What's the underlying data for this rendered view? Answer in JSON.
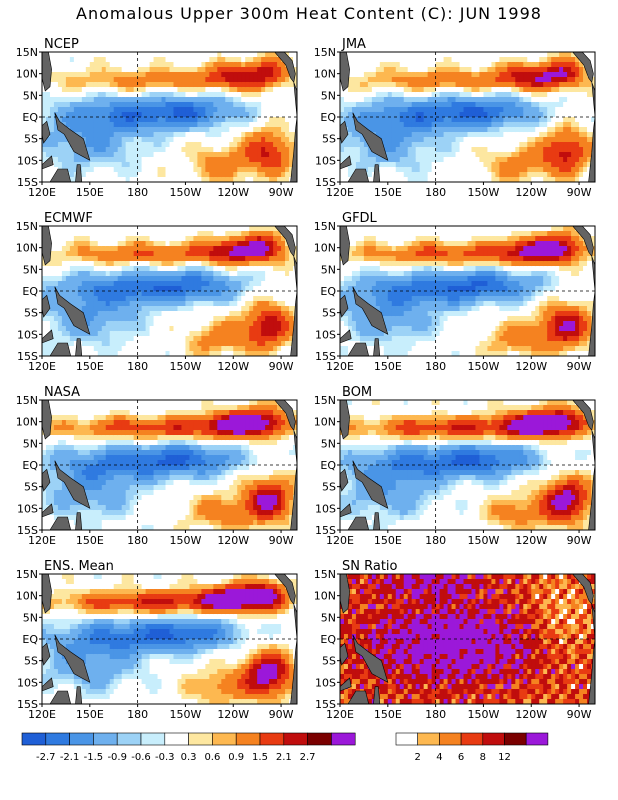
{
  "title": "Anomalous Upper 300m Heat Content (C): JUN 1998",
  "colors": {
    "anomaly_scale": [
      "#1f5fd6",
      "#2f7ae0",
      "#4a95e6",
      "#6eb0ee",
      "#9cd2f6",
      "#c8eefc",
      "#ffffff",
      "#fde7a0",
      "#fdb850",
      "#f58220",
      "#e83b12",
      "#c00d0d",
      "#7a0000",
      "#9b18d9"
    ],
    "sn_scale": [
      "#ffffff",
      "#fdb850",
      "#f58220",
      "#e83b12",
      "#c00d0d",
      "#7a0000",
      "#9b18d9"
    ],
    "land": "#636363"
  },
  "chart_data": [
    {
      "type": "heatmap",
      "title": "NCEP",
      "x_ticks": [
        "120E",
        "150E",
        "180",
        "150W",
        "120W",
        "90W"
      ],
      "y_ticks": [
        "15N",
        "10N",
        "5N",
        "EQ",
        "5S",
        "10S",
        "15S"
      ],
      "colorbar": "anomaly"
    },
    {
      "type": "heatmap",
      "title": "JMA",
      "x_ticks": [
        "120E",
        "150E",
        "180",
        "150W",
        "120W",
        "90W"
      ],
      "y_ticks": [
        "15N",
        "10N",
        "5N",
        "EQ",
        "5S",
        "10S",
        "15S"
      ],
      "colorbar": "anomaly"
    },
    {
      "type": "heatmap",
      "title": "ECMWF",
      "x_ticks": [
        "120E",
        "150E",
        "180",
        "150W",
        "120W",
        "90W"
      ],
      "y_ticks": [
        "15N",
        "10N",
        "5N",
        "EQ",
        "5S",
        "10S",
        "15S"
      ],
      "colorbar": "anomaly"
    },
    {
      "type": "heatmap",
      "title": "GFDL",
      "x_ticks": [
        "120E",
        "150E",
        "180",
        "150W",
        "120W",
        "90W"
      ],
      "y_ticks": [
        "15N",
        "10N",
        "5N",
        "EQ",
        "5S",
        "10S",
        "15S"
      ],
      "colorbar": "anomaly"
    },
    {
      "type": "heatmap",
      "title": "NASA",
      "x_ticks": [
        "120E",
        "150E",
        "180",
        "150W",
        "120W",
        "90W"
      ],
      "y_ticks": [
        "15N",
        "10N",
        "5N",
        "EQ",
        "5S",
        "10S",
        "15S"
      ],
      "colorbar": "anomaly"
    },
    {
      "type": "heatmap",
      "title": "BOM",
      "x_ticks": [
        "120E",
        "150E",
        "180",
        "150W",
        "120W",
        "90W"
      ],
      "y_ticks": [
        "15N",
        "10N",
        "5N",
        "EQ",
        "5S",
        "10S",
        "15S"
      ],
      "colorbar": "anomaly"
    },
    {
      "type": "heatmap",
      "title": "ENS. Mean",
      "x_ticks": [
        "120E",
        "150E",
        "180",
        "150W",
        "120W",
        "90W"
      ],
      "y_ticks": [
        "15N",
        "10N",
        "5N",
        "EQ",
        "5S",
        "10S",
        "15S"
      ],
      "colorbar": "anomaly"
    },
    {
      "type": "heatmap",
      "title": "SN Ratio",
      "x_ticks": [
        "120E",
        "150E",
        "180",
        "150W",
        "120W",
        "90W"
      ],
      "y_ticks": [
        "15N",
        "10N",
        "5N",
        "EQ",
        "5S",
        "10S",
        "15S"
      ],
      "colorbar": "sn"
    }
  ],
  "colorbars": {
    "anomaly": {
      "labels": [
        "-2.7",
        "-2.1",
        "-1.5",
        "-0.9",
        "-0.6",
        "-0.3",
        "0.3",
        "0.6",
        "0.9",
        "1.5",
        "2.1",
        "2.7"
      ]
    },
    "sn": {
      "labels": [
        "2",
        "4",
        "6",
        "8",
        "12"
      ]
    }
  }
}
